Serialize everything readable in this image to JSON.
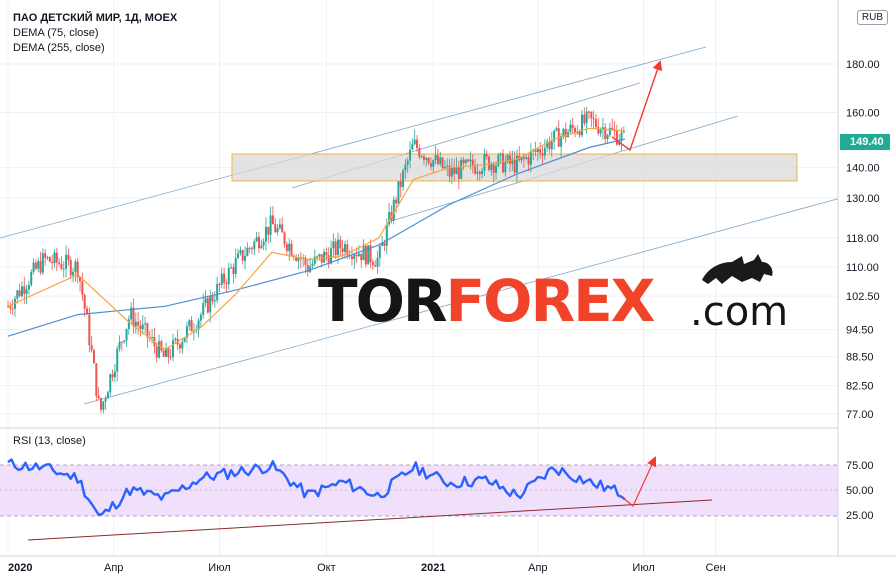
{
  "header": {
    "title": "ПАО ДЕТСКИЙ МИР, 1Д, MOEX",
    "indicator1": "DEMA (75, close)",
    "indicator2": "DEMA (255, close)",
    "currency": "RUB",
    "rsi_label": "RSI (13, close)"
  },
  "last_price": "149.40",
  "logo": {
    "part1": "TOR",
    "part2": "FOREX",
    "part3": ".com"
  },
  "colors": {
    "price_line": "#2962ff",
    "dema75": "#f7a53a",
    "dema255": "#4a8fd6",
    "channel": "#7fa8c9",
    "zone_fill": "#d9d9d9",
    "zone_border": "#f3b33d",
    "arrow": "#ef3b2f",
    "rsi_band": "#f1e0fb",
    "rsi_trend": "#8b2a2a",
    "price_tag": "#22ab94"
  },
  "chart_data": [
    {
      "type": "line",
      "pane": "price",
      "y_scale": "log",
      "y_ticks": [
        "180.00",
        "160.00",
        "140.00",
        "130.00",
        "118.00",
        "110.00",
        "102.50",
        "94.50",
        "88.50",
        "82.50",
        "77.00"
      ],
      "x_ticks": [
        "2020",
        "Апр",
        "Июл",
        "Окт",
        "2021",
        "Апр",
        "Июл",
        "Сен"
      ],
      "series": [
        {
          "name": "ПАО ДЕТСКИЙ МИР",
          "x": [
            "2020-01-01",
            "2020-02-01",
            "2020-03-01",
            "2020-03-20",
            "2020-04-15",
            "2020-05-15",
            "2020-06-15",
            "2020-07-15",
            "2020-08-15",
            "2020-09-15",
            "2020-10-15",
            "2020-11-15",
            "2020-12-15",
            "2021-01-15",
            "2021-02-15",
            "2021-03-15",
            "2021-04-15",
            "2021-05-15",
            "2021-06-15"
          ],
          "y": [
            100,
            112,
            110,
            77,
            98,
            88,
            98,
            111,
            122,
            110,
            116,
            112,
            148,
            138,
            142,
            141,
            150,
            157,
            150
          ]
        },
        {
          "name": "DEMA (75, close)",
          "x": [
            "2020-01-01",
            "2020-03-01",
            "2020-04-15",
            "2020-05-15",
            "2020-06-15",
            "2020-07-15",
            "2020-08-15",
            "2020-09-15",
            "2020-10-15",
            "2020-11-15",
            "2020-12-15",
            "2021-01-15",
            "2021-02-15",
            "2021-03-15",
            "2021-04-15",
            "2021-05-15",
            "2021-06-15"
          ],
          "y": [
            100,
            108,
            96,
            90,
            95,
            103,
            114,
            112,
            113,
            118,
            136,
            140,
            141,
            143,
            150,
            154,
            153
          ]
        },
        {
          "name": "DEMA (255, close)",
          "x": [
            "2020-01-01",
            "2020-03-01",
            "2020-05-15",
            "2020-07-15",
            "2020-09-15",
            "2020-11-15",
            "2021-01-15",
            "2021-03-15",
            "2021-05-15",
            "2021-06-15"
          ],
          "y": [
            93,
            98,
            100,
            104,
            109,
            116,
            128,
            138,
            147,
            150
          ]
        }
      ]
    },
    {
      "type": "line",
      "pane": "rsi",
      "y_ticks": [
        "75.00",
        "50.00",
        "25.00"
      ],
      "band": [
        30,
        70
      ],
      "series": [
        {
          "name": "RSI (13, close)",
          "x": [
            "2020-01-01",
            "2020-02-01",
            "2020-03-01",
            "2020-03-20",
            "2020-04-15",
            "2020-05-15",
            "2020-06-15",
            "2020-07-15",
            "2020-08-15",
            "2020-09-15",
            "2020-10-15",
            "2020-11-15",
            "2020-12-15",
            "2021-01-15",
            "2021-02-15",
            "2021-03-15",
            "2021-04-15",
            "2021-05-15",
            "2021-06-15"
          ],
          "y": [
            76,
            72,
            62,
            22,
            50,
            42,
            62,
            68,
            74,
            45,
            58,
            44,
            73,
            57,
            60,
            44,
            72,
            58,
            46
          ]
        }
      ]
    }
  ]
}
